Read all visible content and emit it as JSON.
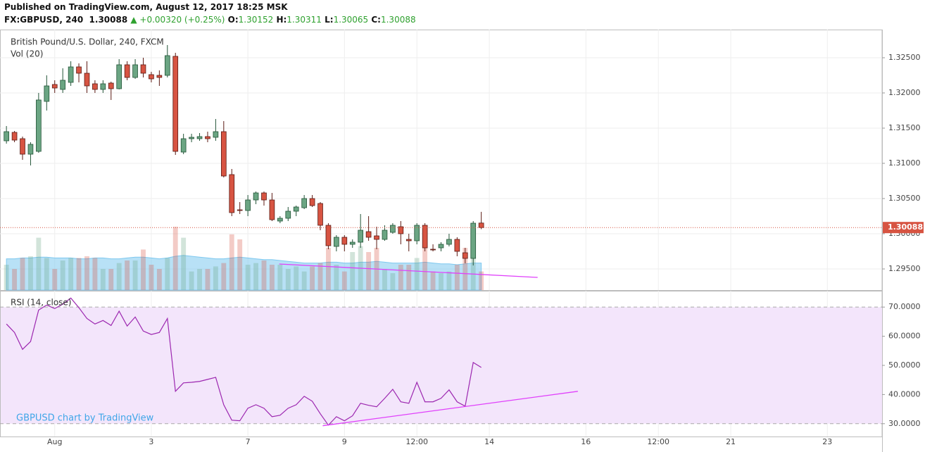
{
  "header": {
    "published": "Published on TradingView.com, August 12, 2017 18:25 MSK",
    "symbol": "FX:GBPUSD, 240",
    "change": "▲ +0.00320 (+0.25%)",
    "labels": [
      "O:",
      "H:",
      "L:",
      "C:"
    ]
  },
  "chart_data": [
    {
      "type": "candlestick",
      "title": "British Pound/U.S. Dollar, 240, FXCM",
      "x": [
        0,
        1,
        2,
        3,
        4,
        5,
        6,
        7,
        8,
        9,
        10,
        11,
        12,
        13,
        14,
        15,
        16,
        17,
        18,
        19,
        20,
        21,
        22,
        23,
        24,
        25,
        26,
        27,
        28,
        29,
        30,
        31,
        32,
        33,
        34,
        35,
        36,
        37,
        38,
        39,
        40,
        41,
        42,
        43,
        44,
        45,
        46,
        47,
        48,
        49,
        50,
        51,
        52,
        53,
        54,
        55,
        56,
        57,
        58,
        59
      ],
      "open": [
        1.3132,
        1.3144,
        1.3135,
        1.3113,
        1.3117,
        1.3188,
        1.3212,
        1.3205,
        1.3215,
        1.3237,
        1.3228,
        1.3213,
        1.3205,
        1.3214,
        1.3206,
        1.324,
        1.3222,
        1.324,
        1.3226,
        1.3225,
        1.3225,
        1.3252,
        1.3116,
        1.3135,
        1.3135,
        1.3138,
        1.3137,
        1.3145,
        1.3084,
        1.3034,
        1.3033,
        1.3048,
        1.3058,
        1.3048,
        1.3018,
        1.3022,
        1.3032,
        1.3037,
        1.305,
        1.3043,
        1.3012,
        1.2982,
        1.2995,
        1.2985,
        1.2988,
        1.3003,
        1.2997,
        1.2992,
        1.3002,
        1.301,
        1.2992,
        1.299,
        1.3012,
        1.2978,
        1.298,
        1.2985,
        1.2992,
        1.2973,
        1.2965,
        1.30152
      ],
      "high": [
        1.3153,
        1.3146,
        1.3138,
        1.313,
        1.32,
        1.3225,
        1.3218,
        1.3235,
        1.3245,
        1.3242,
        1.3245,
        1.3218,
        1.3218,
        1.3216,
        1.3248,
        1.3245,
        1.3248,
        1.325,
        1.323,
        1.3232,
        1.3268,
        1.3257,
        1.3142,
        1.3142,
        1.3143,
        1.3145,
        1.3163,
        1.316,
        1.3092,
        1.3045,
        1.3055,
        1.306,
        1.306,
        1.3058,
        1.3025,
        1.3038,
        1.304,
        1.3055,
        1.3055,
        1.3045,
        1.3015,
        1.2998,
        1.2998,
        1.2992,
        1.3028,
        1.3025,
        1.301,
        1.3012,
        1.3015,
        1.3018,
        1.3,
        1.3015,
        1.3015,
        1.2985,
        1.2988,
        1.3,
        1.2995,
        1.298,
        1.3018,
        1.30311
      ],
      "low": [
        1.3128,
        1.313,
        1.3105,
        1.3097,
        1.3115,
        1.3175,
        1.32,
        1.32,
        1.321,
        1.3215,
        1.32,
        1.32,
        1.32,
        1.319,
        1.3205,
        1.3218,
        1.322,
        1.3222,
        1.3215,
        1.321,
        1.3222,
        1.3112,
        1.3113,
        1.313,
        1.3132,
        1.313,
        1.3132,
        1.308,
        1.3025,
        1.3028,
        1.3025,
        1.3042,
        1.304,
        1.3018,
        1.3015,
        1.3018,
        1.3025,
        1.3035,
        1.3038,
        1.3005,
        1.2978,
        1.2975,
        1.2975,
        1.298,
        1.298,
        1.299,
        1.2978,
        1.299,
        1.3,
        1.2985,
        1.2975,
        1.2985,
        1.2975,
        1.2975,
        1.2975,
        1.2982,
        1.2968,
        1.2958,
        1.2955,
        1.30065
      ],
      "close": [
        1.3145,
        1.3133,
        1.3113,
        1.3127,
        1.319,
        1.321,
        1.3207,
        1.3218,
        1.3237,
        1.3228,
        1.321,
        1.3205,
        1.3213,
        1.3206,
        1.324,
        1.3222,
        1.324,
        1.3228,
        1.322,
        1.3222,
        1.3253,
        1.3117,
        1.3135,
        1.3137,
        1.3138,
        1.3135,
        1.3145,
        1.3082,
        1.303,
        1.3033,
        1.3048,
        1.3058,
        1.3048,
        1.302,
        1.3022,
        1.3032,
        1.3038,
        1.305,
        1.304,
        1.3012,
        1.2983,
        1.2995,
        1.2985,
        1.2988,
        1.3005,
        1.2995,
        1.2992,
        1.3005,
        1.3012,
        1.3,
        1.299,
        1.3012,
        1.298,
        1.2977,
        1.2985,
        1.2992,
        1.2975,
        1.2965,
        1.3015,
        1.30088
      ],
      "up_color": "#6ba583",
      "down_color": "#d75442",
      "xlim": [
        -0.8,
        108.8
      ],
      "xticks": [
        {
          "value": 6,
          "label": "Aug"
        },
        {
          "value": 18,
          "label": "3"
        },
        {
          "value": 30,
          "label": "7"
        },
        {
          "value": 42,
          "label": "9"
        },
        {
          "value": 51,
          "label": "12:00"
        },
        {
          "value": 60,
          "label": "14"
        },
        {
          "value": 72,
          "label": "16"
        },
        {
          "value": 81,
          "label": "12:00"
        },
        {
          "value": 90,
          "label": "21"
        },
        {
          "value": 102,
          "label": "23"
        }
      ],
      "ylim": [
        1.292,
        1.329
      ],
      "yticks": [
        {
          "value": 1.295,
          "label": "1.29500"
        },
        {
          "value": 1.3,
          "label": "1.30000"
        },
        {
          "value": 1.305,
          "label": "1.30500"
        },
        {
          "value": 1.31,
          "label": "1.31000"
        },
        {
          "value": 1.315,
          "label": "1.31500"
        },
        {
          "value": 1.32,
          "label": "1.32000"
        },
        {
          "value": 1.325,
          "label": "1.32500"
        }
      ],
      "grid": true,
      "trendline": {
        "x": [
          33.9,
          66
        ],
        "y": [
          1.2957,
          1.2938
        ],
        "color": "#e040fb"
      },
      "volume": {
        "title": "Vol (20)",
        "ylim": [
          0,
          100
        ],
        "ma_color": "#7ec8ef",
        "values": [
          30,
          25,
          38,
          40,
          62,
          38,
          25,
          35,
          38,
          38,
          40,
          38,
          25,
          25,
          32,
          35,
          35,
          48,
          30,
          25,
          38,
          75,
          62,
          22,
          25,
          25,
          28,
          32,
          66,
          60,
          30,
          32,
          35,
          30,
          30,
          25,
          28,
          22,
          28,
          32,
          50,
          30,
          22,
          45,
          52,
          45,
          50,
          25,
          20,
          30,
          30,
          38,
          52,
          22,
          20,
          22,
          30,
          50,
          55,
          22
        ],
        "ma": [
          37,
          37,
          38,
          38,
          39,
          39,
          38,
          38,
          38,
          37,
          37,
          38,
          38,
          37,
          37,
          38,
          39,
          39,
          38,
          37,
          38,
          40,
          41,
          40,
          39,
          38,
          37,
          37,
          38,
          39,
          38,
          37,
          36,
          36,
          35,
          34,
          33,
          32,
          32,
          32,
          33,
          33,
          32,
          32,
          33,
          33,
          34,
          33,
          32,
          32,
          32,
          32,
          33,
          32,
          31,
          31,
          30,
          31,
          32,
          32
        ]
      },
      "watermark": null
    },
    {
      "type": "line",
      "title": "RSI (14, close)",
      "x": [
        0,
        1,
        2,
        3,
        4,
        5,
        6,
        7,
        8,
        9,
        10,
        11,
        12,
        13,
        14,
        15,
        16,
        17,
        18,
        19,
        20,
        21,
        22,
        23,
        24,
        25,
        26,
        27,
        28,
        29,
        30,
        31,
        32,
        33,
        34,
        35,
        36,
        37,
        38,
        39,
        40,
        41,
        42,
        43,
        44,
        45,
        46,
        47,
        48,
        49,
        50,
        51,
        52,
        53,
        54,
        55,
        56,
        57,
        58,
        59
      ],
      "values": [
        64.2,
        61.3,
        55.5,
        58.2,
        69,
        70.7,
        69.5,
        71,
        73.1,
        69.8,
        66.1,
        64.2,
        65.4,
        63.7,
        68.6,
        63.5,
        66.6,
        61.8,
        60.6,
        61.3,
        66.1,
        41.1,
        44,
        44.2,
        44.5,
        45.2,
        45.9,
        36.5,
        31.2,
        31,
        35.3,
        36.5,
        35.3,
        32.4,
        32.9,
        35.3,
        36.5,
        39.4,
        37.7,
        33.4,
        29.5,
        32.4,
        31,
        32.7,
        37,
        36.3,
        35.8,
        38.7,
        41.8,
        37.5,
        37,
        44.2,
        37.5,
        37.5,
        38.7,
        41.6,
        37.5,
        36,
        51,
        49.3
      ],
      "color": "#9c27b0",
      "band": [
        30,
        70
      ],
      "band_color": "#f3e5fb",
      "ylim": [
        25.6,
        75.6
      ],
      "yticks": [
        {
          "value": 30,
          "label": "30.0000"
        },
        {
          "value": 40,
          "label": "40.0000"
        },
        {
          "value": 50,
          "label": "50.0000"
        },
        {
          "value": 60,
          "label": "60.0000"
        },
        {
          "value": 70,
          "label": "70.0000"
        }
      ],
      "trendline": {
        "x": [
          39.3,
          71
        ],
        "y": [
          29.3,
          41.1
        ],
        "color": "#e040fb"
      },
      "watermark": "GBPUSD chart by TradingView"
    }
  ]
}
